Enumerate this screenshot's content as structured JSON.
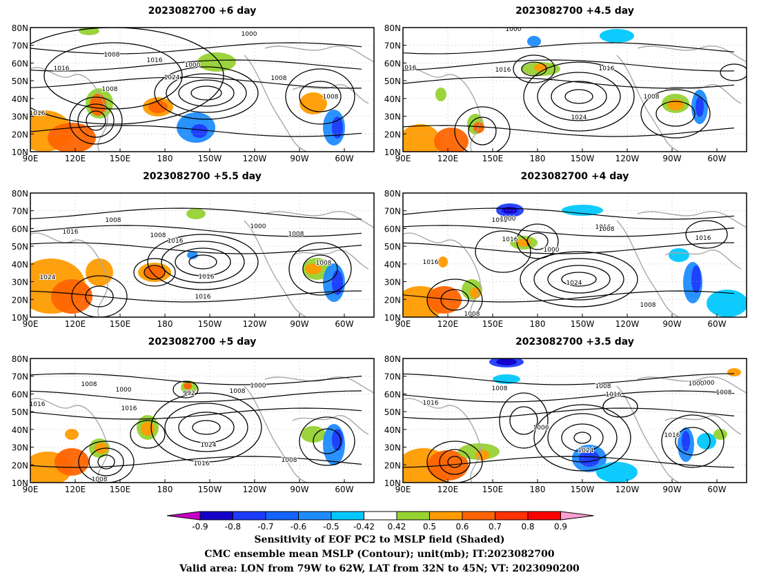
{
  "panels": [
    {
      "title": "2023082700  +6 day"
    },
    {
      "title": "2023082700  +4.5 day"
    },
    {
      "title": "2023082700  +5.5 day"
    },
    {
      "title": "2023082700  +4 day"
    },
    {
      "title": "2023082700  +5 day"
    },
    {
      "title": "2023082700  +3.5 day"
    }
  ],
  "axes": {
    "lat_ticks": [
      "80N",
      "70N",
      "60N",
      "50N",
      "40N",
      "30N",
      "20N",
      "10N"
    ],
    "lon_ticks": [
      "90E",
      "120E",
      "150E",
      "180",
      "150W",
      "120W",
      "90W",
      "60W"
    ]
  },
  "colorbar": {
    "labels": [
      "-0.9",
      "-0.8",
      "-0.7",
      "-0.6",
      "-0.5",
      "-0.42",
      "0.42",
      "0.5",
      "0.6",
      "0.7",
      "0.8",
      "0.9"
    ],
    "colors": [
      "#1400c8",
      "#1e3cff",
      "#1464ff",
      "#1e8cff",
      "#00c8ff",
      "#ffffff",
      "#96d232",
      "#ff9b00",
      "#ff6400",
      "#ff3200",
      "#ff0000"
    ],
    "low_color": "#c800c8",
    "high_color": "#ffa0d2"
  },
  "caption": {
    "line1": "Sensitivity of EOF PC2 to MSLP field (Shaded)",
    "line2": "CMC ensemble mean MSLP (Contour); unit(mb); IT:2023082700",
    "line3": "Valid area: LON from 79W to 62W, LAT from 32N to 45N; VT: 2023090200"
  },
  "contour_labels": [
    [
      "1000",
      "1008",
      "1016",
      "1000",
      "1016",
      "1024",
      "1008",
      "1008",
      "1008",
      "1016"
    ],
    [
      "1000",
      "1016",
      "1016",
      "1016",
      "1024",
      "1008"
    ],
    [
      "1008",
      "1016",
      "1000",
      "1008",
      "1016",
      "1008",
      "1024",
      "1016",
      "1016",
      "1008"
    ],
    [
      "1008",
      "1000",
      "1016",
      "1016",
      "1008",
      "1000",
      "1016",
      "1024",
      "1016",
      "1008",
      "1008"
    ],
    [
      "1008",
      "1000",
      "992",
      "1008",
      "1000",
      "1016",
      "1016",
      "1024",
      "1016",
      "1008",
      "1008"
    ],
    [
      "1000",
      "1008",
      "1016",
      "1008",
      "1016",
      "1000",
      "1024",
      "1016",
      "1000",
      "1008"
    ]
  ]
}
